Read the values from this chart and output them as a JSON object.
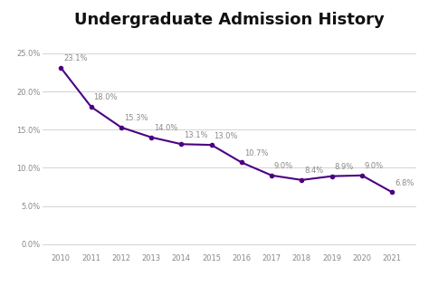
{
  "title": "Undergraduate Admission History",
  "years": [
    2010,
    2011,
    2012,
    2013,
    2014,
    2015,
    2016,
    2017,
    2018,
    2019,
    2020,
    2021
  ],
  "values": [
    23.1,
    18.0,
    15.3,
    14.0,
    13.1,
    13.0,
    10.7,
    9.0,
    8.4,
    8.9,
    9.0,
    6.8
  ],
  "line_color": "#4B0082",
  "marker": "o",
  "marker_size": 3,
  "line_width": 1.5,
  "title_fontsize": 13,
  "title_fontweight": "bold",
  "label_fontsize": 6,
  "tick_fontsize": 6,
  "yticks": [
    0.0,
    5.0,
    10.0,
    15.0,
    20.0,
    25.0
  ],
  "ylim": [
    -1.0,
    27.5
  ],
  "xlim_left": 2009.4,
  "xlim_right": 2021.8,
  "background_color": "#ffffff",
  "grid_color": "#cccccc",
  "label_color": "#888888",
  "tick_color": "#888888"
}
